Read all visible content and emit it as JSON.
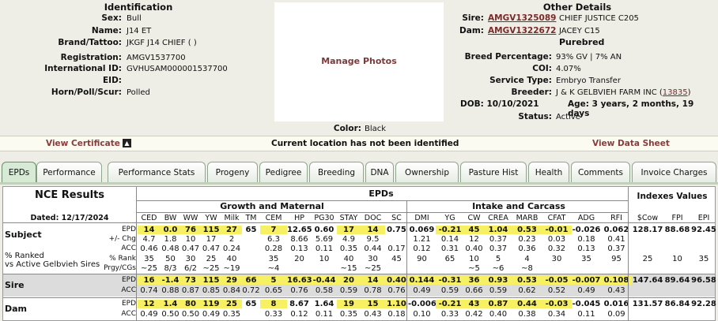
{
  "identification": {
    "title": "Identification",
    "rows": [
      {
        "label": "Sex:",
        "value": "Bull"
      },
      {
        "label": "Name:",
        "value": "J14 ET"
      },
      {
        "label": "Brand/Tattoo:",
        "value": "JKGF J14 CHIEF ( )"
      },
      {
        "label": "Registration:",
        "value": "AMGV1537700"
      },
      {
        "label": "International ID:",
        "value": "GVHUSAM000001537700"
      },
      {
        "label": "EID:",
        "value": ""
      },
      {
        "label": "Horn/Poll/Scur:",
        "value": "Polled"
      }
    ]
  },
  "photo": {
    "label": "Manage Photos"
  },
  "color": {
    "label": "Color:",
    "value": "Black"
  },
  "other": {
    "title": "Other Details",
    "sire_label": "Sire:",
    "sire_id": "AMGV1325089",
    "sire_name": "CHIEF JUSTICE C205",
    "dam_label": "Dam:",
    "dam_id": "AMGV1322672",
    "dam_name": "JACEY C15",
    "purebred": "Purebred",
    "rows": [
      {
        "label": "Breed Percentage:",
        "value": "93% GV | 7% AN"
      },
      {
        "label": "COI:",
        "value": "4.07%"
      },
      {
        "label": "Service Type:",
        "value": "Embryo Transfer"
      }
    ],
    "breeder_label": "Breeder:",
    "breeder_value": "J & K GELBVIEH FARM INC (",
    "breeder_link": "13835",
    "breeder_close": ")",
    "dob": "DOB: 10/10/2021",
    "age": "Age: 3 years, 2 months, 19 days",
    "status_label": "Status:",
    "status_value": "Active"
  },
  "bar": {
    "view_certificate": "View Certificate",
    "location": "Current location has not been identified",
    "view_data_sheet": "View Data Sheet"
  },
  "tabs": [
    "EPDs",
    "Performance",
    "Performance Stats",
    "Progeny",
    "Pedigree",
    "Breeding",
    "DNA",
    "Ownership",
    "Pasture Hist",
    "Health",
    "Comments",
    "Invoice Charges"
  ],
  "epd": {
    "nce_title": "NCE Results",
    "dated": "Dated: 12/17/2024",
    "epds_title": "EPDs",
    "growth_title": "Growth and Maternal",
    "intake_title": "Intake and Carcass",
    "indexes_title": "Indexes Values",
    "columns": [
      "CED",
      "BW",
      "WW",
      "YW",
      "Milk",
      "TM",
      "CEM",
      "HP",
      "PG30",
      "STAY",
      "DOC",
      "SC",
      "DMI",
      "YG",
      "CW",
      "CREA",
      "MARB",
      "CFAT",
      "ADG",
      "RFI",
      "$Cow",
      "FPI",
      "EPI"
    ],
    "subject_label": "Subject",
    "ranked_label": "% Ranked",
    "vs_label": "vs Active Gelbvieh Sires",
    "row_labels": {
      "epd": "EPD",
      "chg": "+/- Chg",
      "acc": "ACC",
      "rank": "% Rank",
      "prgy": "Prgy/CGs"
    },
    "subject": {
      "epd": [
        "14",
        "0.0",
        "76",
        "115",
        "27",
        "65",
        "7",
        "12.65",
        "0.60",
        "17",
        "14",
        "0.75",
        "0.069",
        "-0.21",
        "45",
        "1.04",
        "0.53",
        "-0.01",
        "-0.026",
        "0.062",
        "128.17",
        "88.68",
        "92.45"
      ],
      "hl": [
        1,
        1,
        1,
        1,
        1,
        0,
        1,
        0,
        0,
        1,
        1,
        0,
        0,
        1,
        1,
        1,
        1,
        1,
        0,
        0,
        0,
        0,
        0
      ],
      "chg": [
        "4.7",
        "1.8",
        "10",
        "17",
        "2",
        "",
        "6.3",
        "8.66",
        "5.69",
        "4.9",
        "9.5",
        "",
        "1.21",
        "0.14",
        "12",
        "0.37",
        "0.23",
        "0.03",
        "0.18",
        "0.41",
        "",
        "",
        ""
      ],
      "acc": [
        "0.46",
        "0.48",
        "0.47",
        "0.47",
        "0.24",
        "",
        "0.28",
        "0.13",
        "0.11",
        "0.35",
        "0.44",
        "0.17",
        "0.12",
        "0.31",
        "0.40",
        "0.37",
        "0.36",
        "0.32",
        "0.13",
        "0.37",
        "",
        "",
        ""
      ],
      "rank": [
        "35",
        "50",
        "30",
        "25",
        "40",
        "",
        "35",
        "20",
        "10",
        "40",
        "30",
        "45",
        "90",
        "65",
        "10",
        "5",
        "4",
        "30",
        "35",
        "95",
        "25",
        "10",
        "35"
      ],
      "prgy": [
        "~25",
        "8/3",
        "6/2",
        "~25",
        "~19",
        "",
        "~4",
        "",
        "",
        "~15",
        "~25",
        "",
        "",
        "",
        "~5",
        "~6",
        "~8",
        "",
        "",
        "",
        "",
        "",
        ""
      ]
    },
    "sire_label": "Sire",
    "sire": {
      "epd": [
        "16",
        "-1.4",
        "73",
        "115",
        "29",
        "66",
        "5",
        "16.63",
        "-0.44",
        "20",
        "14",
        "0.40",
        "0.144",
        "-0.31",
        "36",
        "0.93",
        "0.53",
        "-0.05",
        "-0.007",
        "0.108",
        "147.64",
        "89.64",
        "96.58"
      ],
      "hl": [
        1,
        1,
        1,
        1,
        1,
        1,
        1,
        1,
        1,
        1,
        1,
        1,
        1,
        1,
        1,
        1,
        1,
        1,
        1,
        1,
        0,
        0,
        0
      ],
      "acc": [
        "0.74",
        "0.88",
        "0.87",
        "0.85",
        "0.84",
        "0.72",
        "0.65",
        "0.76",
        "0.58",
        "0.59",
        "0.78",
        "0.76",
        "0.49",
        "0.59",
        "0.66",
        "0.59",
        "0.62",
        "0.52",
        "0.49",
        "0.43",
        "",
        "",
        ""
      ]
    },
    "dam_label": "Dam",
    "dam": {
      "epd": [
        "12",
        "1.4",
        "80",
        "119",
        "25",
        "65",
        "8",
        "8.67",
        "1.64",
        "19",
        "15",
        "1.10",
        "-0.006",
        "-0.21",
        "43",
        "0.87",
        "0.44",
        "-0.03",
        "-0.045",
        "0.016",
        "131.57",
        "86.84",
        "92.28"
      ],
      "hl": [
        1,
        1,
        1,
        1,
        1,
        0,
        1,
        0,
        0,
        1,
        1,
        1,
        0,
        1,
        1,
        1,
        1,
        1,
        0,
        0,
        0,
        0,
        0
      ],
      "acc": [
        "0.49",
        "0.50",
        "0.50",
        "0.49",
        "0.35",
        "",
        "0.33",
        "0.12",
        "0.11",
        "0.35",
        "0.43",
        "0.18",
        "0.10",
        "0.33",
        "0.42",
        "0.40",
        "0.38",
        "0.34",
        "0.11",
        "0.09",
        "",
        "",
        ""
      ]
    }
  }
}
